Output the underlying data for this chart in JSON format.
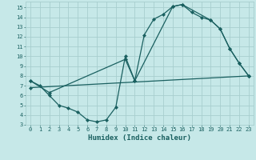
{
  "xlabel": "Humidex (Indice chaleur)",
  "background_color": "#c6e8e8",
  "grid_color": "#a8cece",
  "line_color": "#1a6060",
  "xlim": [
    -0.5,
    23.5
  ],
  "ylim": [
    3,
    15.6
  ],
  "xticks": [
    0,
    1,
    2,
    3,
    4,
    5,
    6,
    7,
    8,
    9,
    10,
    11,
    12,
    13,
    14,
    15,
    16,
    17,
    18,
    19,
    20,
    21,
    22,
    23
  ],
  "yticks": [
    3,
    4,
    5,
    6,
    7,
    8,
    9,
    10,
    11,
    12,
    13,
    14,
    15
  ],
  "line1_x": [
    0,
    1,
    2,
    3,
    4,
    5,
    6,
    7,
    8,
    9,
    10,
    11,
    12,
    13,
    14,
    15,
    16,
    17,
    18,
    19,
    20,
    21,
    22,
    23
  ],
  "line1_y": [
    7.5,
    7.0,
    6.0,
    5.0,
    4.7,
    4.3,
    3.5,
    3.3,
    3.5,
    4.8,
    10.0,
    7.5,
    12.2,
    13.8,
    14.3,
    15.1,
    15.3,
    14.5,
    14.0,
    13.7,
    12.8,
    10.8,
    9.3,
    8.0
  ],
  "line2_x": [
    0,
    2,
    10,
    11,
    15,
    16,
    19,
    20,
    21,
    22,
    23
  ],
  "line2_y": [
    7.5,
    6.3,
    9.7,
    7.5,
    15.1,
    15.3,
    13.7,
    12.8,
    10.8,
    9.3,
    8.0
  ],
  "line3_x": [
    0,
    23
  ],
  "line3_y": [
    6.8,
    8.0
  ]
}
